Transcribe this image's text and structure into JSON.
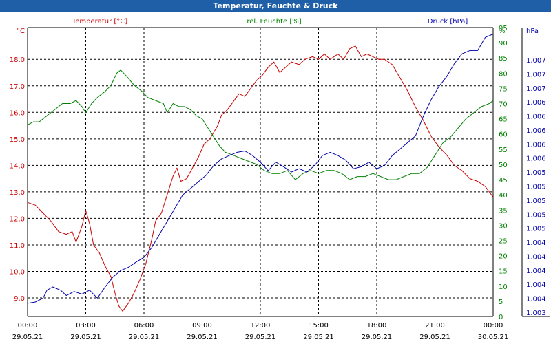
{
  "window": {
    "title": "Temperatur, Feuchte & Druck"
  },
  "colors": {
    "temperature": "#cc0000",
    "humidity": "#008000",
    "pressure": "#0000aa",
    "grid": "#000000",
    "title_bar": "#1f5fa8"
  },
  "chart_data": {
    "type": "line",
    "title": "Temperatur, Feuchte & Druck",
    "grid": true,
    "x": {
      "tick_times": [
        "00:00",
        "03:00",
        "06:00",
        "09:00",
        "12:00",
        "15:00",
        "18:00",
        "21:00",
        "00:00"
      ],
      "tick_dates": [
        "29.05.21",
        "29.05.21",
        "29.05.21",
        "29.05.21",
        "29.05.21",
        "29.05.21",
        "29.05.21",
        "29.05.21",
        "30.05.21"
      ],
      "range_hours": [
        0,
        24
      ]
    },
    "axes": {
      "temperature": {
        "unit": "°C",
        "range": [
          8.3,
          19.2
        ],
        "ticks": [
          "9.0",
          "10.0",
          "11.0",
          "12.0",
          "13.0",
          "14.0",
          "15.0",
          "16.0",
          "17.0",
          "18.0"
        ],
        "position": "left"
      },
      "humidity": {
        "unit": "%",
        "range": [
          0,
          95
        ],
        "ticks": [
          "0",
          "5",
          "10",
          "15",
          "20",
          "25",
          "30",
          "35",
          "40",
          "45",
          "50",
          "55",
          "60",
          "65",
          "70",
          "75",
          "80",
          "85",
          "90",
          "95"
        ],
        "position": "right"
      },
      "pressure": {
        "unit": "hPa",
        "range": [
          1003.1,
          1007.5
        ],
        "ticks": [
          "1.003",
          "1.004",
          "1.004",
          "1.004",
          "1.004",
          "1.004",
          "1.005",
          "1.005",
          "1.005",
          "1.005",
          "1.005",
          "1.006",
          "1.006",
          "1.006",
          "1.006",
          "1.006",
          "1.007",
          "1.007",
          "1.007"
        ],
        "position": "far-right"
      }
    },
    "series": [
      {
        "name": "Temperatur [°C]",
        "axis": "temperature",
        "color": "#cc0000",
        "points": [
          [
            0,
            12.6
          ],
          [
            0.4,
            12.5
          ],
          [
            0.8,
            12.2
          ],
          [
            1.2,
            11.9
          ],
          [
            1.6,
            11.5
          ],
          [
            2,
            11.4
          ],
          [
            2.3,
            11.5
          ],
          [
            2.5,
            11.1
          ],
          [
            2.8,
            11.7
          ],
          [
            3,
            12.3
          ],
          [
            3.2,
            11.8
          ],
          [
            3.4,
            11.0
          ],
          [
            3.7,
            10.7
          ],
          [
            4,
            10.2
          ],
          [
            4.3,
            9.8
          ],
          [
            4.5,
            9.2
          ],
          [
            4.7,
            8.7
          ],
          [
            4.9,
            8.5
          ],
          [
            5.2,
            8.8
          ],
          [
            5.5,
            9.2
          ],
          [
            5.8,
            9.7
          ],
          [
            6.1,
            10.3
          ],
          [
            6.4,
            11.2
          ],
          [
            6.6,
            11.9
          ],
          [
            6.9,
            12.2
          ],
          [
            7.2,
            12.9
          ],
          [
            7.5,
            13.6
          ],
          [
            7.7,
            13.9
          ],
          [
            7.9,
            13.4
          ],
          [
            8.2,
            13.5
          ],
          [
            8.5,
            13.9
          ],
          [
            8.8,
            14.3
          ],
          [
            9.1,
            14.8
          ],
          [
            9.4,
            15.0
          ],
          [
            9.8,
            15.5
          ],
          [
            10,
            15.9
          ],
          [
            10.3,
            16.1
          ],
          [
            10.6,
            16.4
          ],
          [
            10.9,
            16.7
          ],
          [
            11.2,
            16.6
          ],
          [
            11.5,
            16.9
          ],
          [
            11.8,
            17.2
          ],
          [
            12.1,
            17.4
          ],
          [
            12.4,
            17.7
          ],
          [
            12.7,
            17.9
          ],
          [
            13,
            17.5
          ],
          [
            13.3,
            17.7
          ],
          [
            13.6,
            17.9
          ],
          [
            14,
            17.8
          ],
          [
            14.3,
            18.0
          ],
          [
            14.7,
            18.1
          ],
          [
            15,
            18.0
          ],
          [
            15.3,
            18.2
          ],
          [
            15.6,
            18.0
          ],
          [
            16,
            18.2
          ],
          [
            16.3,
            18.0
          ],
          [
            16.6,
            18.4
          ],
          [
            16.9,
            18.5
          ],
          [
            17.2,
            18.1
          ],
          [
            17.5,
            18.2
          ],
          [
            17.8,
            18.1
          ],
          [
            18.1,
            18.0
          ],
          [
            18.4,
            18.0
          ],
          [
            18.8,
            17.8
          ],
          [
            19.2,
            17.3
          ],
          [
            19.6,
            16.8
          ],
          [
            20,
            16.2
          ],
          [
            20.4,
            15.7
          ],
          [
            20.8,
            15.1
          ],
          [
            21.2,
            14.7
          ],
          [
            21.6,
            14.4
          ],
          [
            22,
            14.0
          ],
          [
            22.4,
            13.8
          ],
          [
            22.8,
            13.5
          ],
          [
            23.2,
            13.4
          ],
          [
            23.6,
            13.2
          ],
          [
            24,
            12.8
          ]
        ]
      },
      {
        "name": "rel. Feuchte [%]",
        "axis": "humidity",
        "color": "#008000",
        "points": [
          [
            0,
            63
          ],
          [
            0.3,
            64
          ],
          [
            0.6,
            64
          ],
          [
            1,
            66
          ],
          [
            1.4,
            68
          ],
          [
            1.8,
            70
          ],
          [
            2.2,
            70
          ],
          [
            2.5,
            71
          ],
          [
            2.8,
            69
          ],
          [
            3,
            67
          ],
          [
            3.3,
            70
          ],
          [
            3.6,
            72
          ],
          [
            4,
            74
          ],
          [
            4.3,
            76
          ],
          [
            4.6,
            80
          ],
          [
            4.8,
            81
          ],
          [
            5.1,
            79
          ],
          [
            5.5,
            76
          ],
          [
            5.9,
            74
          ],
          [
            6.2,
            72
          ],
          [
            6.6,
            71
          ],
          [
            7,
            70
          ],
          [
            7.2,
            67
          ],
          [
            7.5,
            70
          ],
          [
            7.8,
            69
          ],
          [
            8.1,
            69
          ],
          [
            8.4,
            68
          ],
          [
            8.7,
            66
          ],
          [
            9,
            65
          ],
          [
            9.3,
            62
          ],
          [
            9.6,
            59
          ],
          [
            9.9,
            56
          ],
          [
            10.2,
            54
          ],
          [
            10.6,
            53
          ],
          [
            11,
            52
          ],
          [
            11.4,
            51
          ],
          [
            11.8,
            50
          ],
          [
            12.2,
            48
          ],
          [
            12.6,
            47
          ],
          [
            13,
            47
          ],
          [
            13.4,
            48
          ],
          [
            13.8,
            45
          ],
          [
            14.2,
            47
          ],
          [
            14.6,
            48
          ],
          [
            15,
            47
          ],
          [
            15.4,
            48
          ],
          [
            15.8,
            48
          ],
          [
            16.2,
            47
          ],
          [
            16.6,
            45
          ],
          [
            17,
            46
          ],
          [
            17.4,
            46
          ],
          [
            17.8,
            47
          ],
          [
            18.2,
            46
          ],
          [
            18.6,
            45
          ],
          [
            19,
            45
          ],
          [
            19.4,
            46
          ],
          [
            19.8,
            47
          ],
          [
            20.2,
            47
          ],
          [
            20.6,
            49
          ],
          [
            21,
            53
          ],
          [
            21.4,
            57
          ],
          [
            21.8,
            59
          ],
          [
            22.2,
            62
          ],
          [
            22.6,
            65
          ],
          [
            23,
            67
          ],
          [
            23.4,
            69
          ],
          [
            23.8,
            70
          ],
          [
            24,
            71
          ]
        ]
      },
      {
        "name": "Druck [hPa]",
        "axis": "pressure",
        "color": "#0000aa",
        "points": [
          [
            0,
            1003.3
          ],
          [
            0.4,
            1003.32
          ],
          [
            0.8,
            1003.38
          ],
          [
            1,
            1003.5
          ],
          [
            1.3,
            1003.55
          ],
          [
            1.7,
            1003.5
          ],
          [
            2,
            1003.42
          ],
          [
            2.4,
            1003.48
          ],
          [
            2.8,
            1003.44
          ],
          [
            3.2,
            1003.5
          ],
          [
            3.6,
            1003.38
          ],
          [
            4,
            1003.55
          ],
          [
            4.4,
            1003.7
          ],
          [
            4.8,
            1003.8
          ],
          [
            5.2,
            1003.85
          ],
          [
            5.6,
            1003.93
          ],
          [
            6,
            1004.0
          ],
          [
            6.4,
            1004.15
          ],
          [
            6.8,
            1004.35
          ],
          [
            7.2,
            1004.55
          ],
          [
            7.6,
            1004.75
          ],
          [
            8,
            1004.95
          ],
          [
            8.4,
            1005.05
          ],
          [
            8.8,
            1005.15
          ],
          [
            9.2,
            1005.25
          ],
          [
            9.6,
            1005.4
          ],
          [
            10,
            1005.5
          ],
          [
            10.4,
            1005.55
          ],
          [
            10.8,
            1005.6
          ],
          [
            11.2,
            1005.62
          ],
          [
            11.6,
            1005.55
          ],
          [
            12,
            1005.45
          ],
          [
            12.4,
            1005.32
          ],
          [
            12.8,
            1005.45
          ],
          [
            13.2,
            1005.38
          ],
          [
            13.6,
            1005.3
          ],
          [
            14,
            1005.35
          ],
          [
            14.4,
            1005.3
          ],
          [
            14.8,
            1005.4
          ],
          [
            15.2,
            1005.55
          ],
          [
            15.6,
            1005.6
          ],
          [
            16,
            1005.55
          ],
          [
            16.4,
            1005.48
          ],
          [
            16.8,
            1005.35
          ],
          [
            17.2,
            1005.38
          ],
          [
            17.6,
            1005.45
          ],
          [
            18,
            1005.35
          ],
          [
            18.4,
            1005.4
          ],
          [
            18.8,
            1005.55
          ],
          [
            19.2,
            1005.65
          ],
          [
            19.6,
            1005.75
          ],
          [
            20,
            1005.85
          ],
          [
            20.4,
            1006.15
          ],
          [
            20.8,
            1006.4
          ],
          [
            21.2,
            1006.6
          ],
          [
            21.6,
            1006.75
          ],
          [
            22,
            1006.95
          ],
          [
            22.4,
            1007.1
          ],
          [
            22.8,
            1007.15
          ],
          [
            23.2,
            1007.15
          ],
          [
            23.6,
            1007.35
          ],
          [
            24,
            1007.4
          ]
        ]
      }
    ]
  }
}
